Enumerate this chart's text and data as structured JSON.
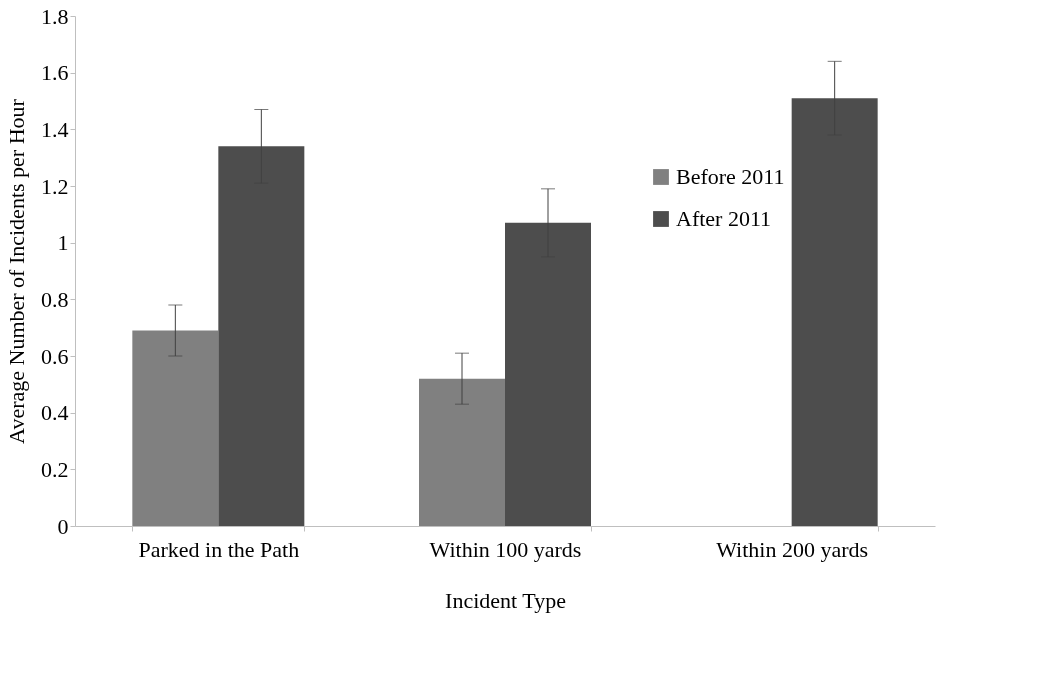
{
  "chart_data": {
    "type": "bar",
    "xlabel": "Incident Type",
    "ylabel": "Average Number of Incidents per Hour",
    "categories": [
      "Parked in the Path",
      "Within 100 yards",
      "Within 200 yards"
    ],
    "series": [
      {
        "name": "Before 2011",
        "color": "#808080",
        "values": [
          0.69,
          0.52,
          null
        ],
        "errors": [
          0.09,
          0.09,
          null
        ]
      },
      {
        "name": "After 2011",
        "color": "#4d4d4d",
        "values": [
          1.34,
          1.07,
          1.51
        ],
        "errors": [
          0.13,
          0.12,
          0.13
        ]
      }
    ],
    "ylim": [
      0,
      1.8
    ],
    "yticks": [
      0,
      0.2,
      0.4,
      0.6,
      0.8,
      1,
      1.2,
      1.4,
      1.6,
      1.8
    ],
    "grid": false,
    "legend": "top right"
  }
}
